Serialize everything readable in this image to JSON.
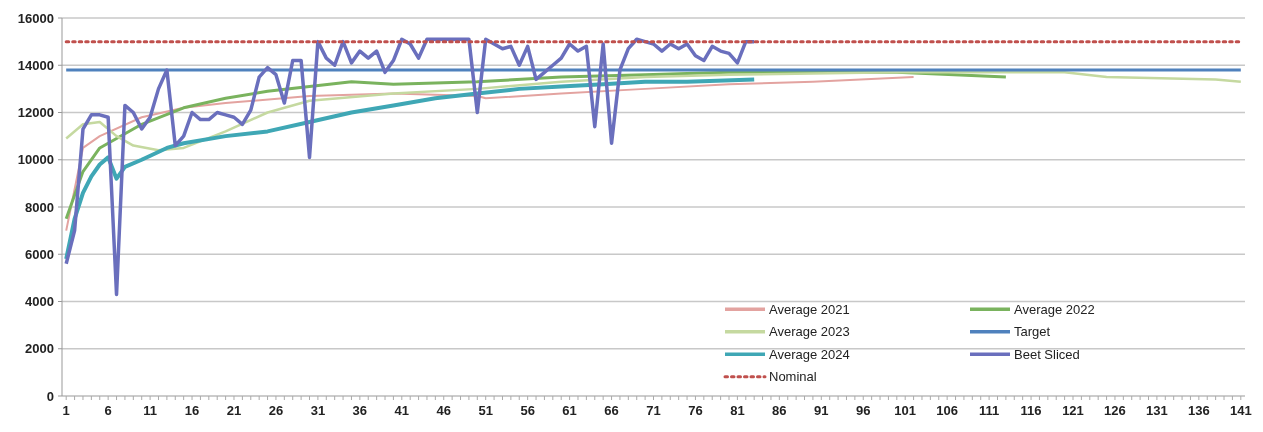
{
  "chart_data": {
    "type": "line",
    "xlim": [
      0.5,
      141.5
    ],
    "xticks": [
      1,
      6,
      11,
      16,
      21,
      26,
      31,
      36,
      41,
      46,
      51,
      56,
      61,
      66,
      71,
      76,
      81,
      86,
      91,
      96,
      101,
      106,
      111,
      116,
      121,
      126,
      131,
      136,
      141
    ],
    "ylim": [
      0,
      16000
    ],
    "yticks": [
      0,
      2000,
      4000,
      6000,
      8000,
      10000,
      12000,
      14000,
      16000
    ],
    "grid": "y",
    "legend": "bottom right",
    "marker": "none",
    "series": [
      {
        "name": "Average 2021",
        "color": "#e3a3a0",
        "x": [
          1,
          3,
          5,
          10,
          15,
          20,
          30,
          40,
          50,
          51,
          60,
          70,
          80,
          90,
          102
        ],
        "values": [
          7000,
          10500,
          11000,
          11800,
          12200,
          12400,
          12700,
          12800,
          12700,
          12600,
          12800,
          13000,
          13200,
          13300,
          13500
        ]
      },
      {
        "name": "Average 2022",
        "color": "#7ab35e",
        "x": [
          1,
          3,
          5,
          10,
          15,
          20,
          25,
          30,
          35,
          40,
          50,
          60,
          70,
          80,
          90,
          100,
          113
        ],
        "values": [
          7500,
          9500,
          10500,
          11500,
          12200,
          12600,
          12900,
          13100,
          13300,
          13200,
          13300,
          13500,
          13600,
          13700,
          13700,
          13700,
          13500
        ]
      },
      {
        "name": "Average 2023",
        "color": "#c5d9a0",
        "x": [
          1,
          3,
          5,
          7,
          9,
          12,
          15,
          20,
          25,
          30,
          40,
          50,
          60,
          70,
          80,
          100,
          120,
          125,
          138,
          141
        ],
        "values": [
          10900,
          11500,
          11600,
          11000,
          10600,
          10400,
          10500,
          11200,
          12000,
          12500,
          12800,
          13000,
          13300,
          13500,
          13600,
          13700,
          13700,
          13500,
          13400,
          13300
        ]
      },
      {
        "name": "Target",
        "color": "#4f81bd",
        "x": [
          1,
          141
        ],
        "values": [
          13800,
          13800
        ]
      },
      {
        "name": "Average 2024",
        "color": "#3fa7b5",
        "x": [
          1,
          2,
          3,
          4,
          5,
          6,
          7,
          8,
          10,
          13,
          15,
          20,
          25,
          30,
          35,
          40,
          45,
          50,
          55,
          60,
          65,
          70,
          75,
          83
        ],
        "values": [
          5800,
          7500,
          8600,
          9300,
          9800,
          10100,
          9200,
          9700,
          10000,
          10500,
          10700,
          11000,
          11200,
          11600,
          12000,
          12300,
          12600,
          12800,
          13000,
          13100,
          13200,
          13300,
          13300,
          13400
        ]
      },
      {
        "name": "Beet Sliced",
        "color": "#6a6fbd",
        "x": [
          1,
          2,
          3,
          4,
          5,
          6,
          7,
          8,
          9,
          10,
          11,
          12,
          13,
          14,
          15,
          16,
          17,
          18,
          19,
          20,
          21,
          22,
          23,
          24,
          25,
          26,
          27,
          28,
          29,
          30,
          31,
          32,
          33,
          34,
          35,
          36,
          37,
          38,
          39,
          40,
          41,
          42,
          43,
          44,
          45,
          46,
          47,
          48,
          49,
          50,
          51,
          52,
          53,
          54,
          55,
          56,
          57,
          58,
          59,
          60,
          61,
          62,
          63,
          64,
          65,
          66,
          67,
          68,
          69,
          70,
          71,
          72,
          73,
          74,
          75,
          76,
          77,
          78,
          79,
          80,
          81,
          82,
          83
        ],
        "values": [
          5600,
          7000,
          11300,
          11900,
          11900,
          11800,
          4300,
          12300,
          12000,
          11300,
          11800,
          13000,
          13800,
          10600,
          11000,
          12000,
          11700,
          11700,
          12000,
          11900,
          11800,
          11500,
          12100,
          13500,
          13900,
          13600,
          12400,
          14200,
          14200,
          10100,
          15000,
          14300,
          14000,
          15000,
          14100,
          14600,
          14300,
          14600,
          13700,
          14200,
          15100,
          14900,
          14300,
          15100,
          15100,
          15100,
          15100,
          15100,
          15100,
          12000,
          15100,
          14900,
          14700,
          14800,
          14000,
          14800,
          13400,
          13700,
          14000,
          14300,
          14900,
          14600,
          14800,
          11400,
          14900,
          10700,
          13800,
          14700,
          15100,
          15000,
          14900,
          14600,
          14900,
          14700,
          14900,
          14400,
          14200,
          14800,
          14600,
          14500,
          14100,
          15000,
          15000
        ]
      },
      {
        "name": "Nominal",
        "color": "#c0504d",
        "line_style": "dotted",
        "x": [
          1,
          141
        ],
        "values": [
          15000,
          15000
        ]
      }
    ]
  }
}
